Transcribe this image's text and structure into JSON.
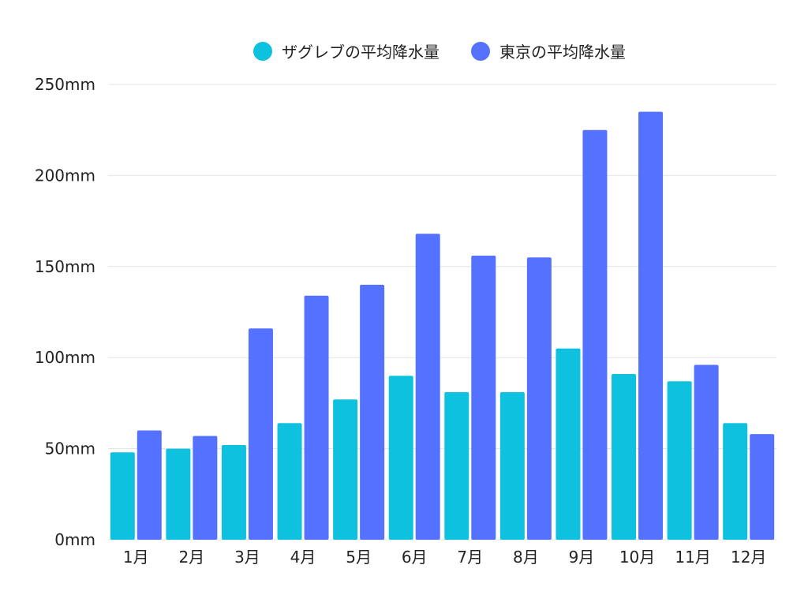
{
  "chart_data": {
    "type": "bar",
    "categories": [
      "1月",
      "2月",
      "3月",
      "4月",
      "5月",
      "6月",
      "7月",
      "8月",
      "9月",
      "10月",
      "11月",
      "12月"
    ],
    "series": [
      {
        "name": "ザグレブの平均降水量",
        "color": "#0ec2df",
        "values": [
          48,
          50,
          52,
          64,
          77,
          90,
          81,
          81,
          105,
          91,
          87,
          64
        ]
      },
      {
        "name": "東京の平均降水量",
        "color": "#5472ff",
        "values": [
          60,
          57,
          116,
          134,
          140,
          168,
          156,
          155,
          225,
          235,
          96,
          58
        ]
      }
    ],
    "ylim": [
      0,
      250
    ],
    "yticks": [
      0,
      50,
      100,
      150,
      200,
      250
    ],
    "ytick_labels": [
      "0mm",
      "50mm",
      "100mm",
      "150mm",
      "200mm",
      "250mm"
    ],
    "grid": true,
    "legend_position": "top-center"
  }
}
